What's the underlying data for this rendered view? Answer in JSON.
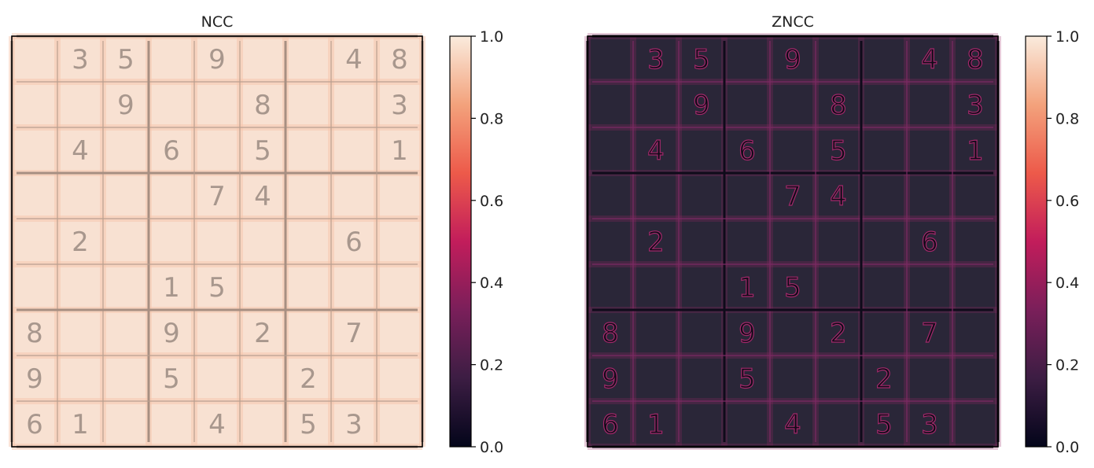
{
  "chart_data": [
    {
      "type": "heatmap",
      "title": "NCC",
      "colorbar": {
        "ticks": [
          "0.0",
          "0.2",
          "0.4",
          "0.6",
          "0.8",
          "1.0"
        ],
        "range": [
          0.0,
          1.0
        ]
      },
      "background": "#f8e1d2",
      "grid": [
        [
          null,
          "3",
          "5",
          null,
          "9",
          null,
          null,
          "4",
          "8"
        ],
        [
          null,
          null,
          "9",
          null,
          null,
          "8",
          null,
          null,
          "3"
        ],
        [
          null,
          "4",
          null,
          "6",
          null,
          "5",
          null,
          null,
          "1"
        ],
        [
          null,
          null,
          null,
          null,
          "7",
          "4",
          null,
          null,
          null
        ],
        [
          null,
          "2",
          null,
          null,
          null,
          null,
          null,
          "6",
          null
        ],
        [
          null,
          null,
          null,
          "1",
          "5",
          null,
          null,
          null,
          null
        ],
        [
          "8",
          null,
          null,
          "9",
          null,
          "2",
          null,
          "7",
          null
        ],
        [
          "9",
          null,
          null,
          "5",
          null,
          null,
          "2",
          null,
          null
        ],
        [
          "6",
          "1",
          null,
          null,
          "4",
          null,
          "5",
          "3",
          null
        ]
      ]
    },
    {
      "type": "heatmap",
      "title": "ZNCC",
      "colorbar": {
        "ticks": [
          "0.0",
          "0.2",
          "0.4",
          "0.6",
          "0.8",
          "1.0"
        ],
        "range": [
          0.0,
          1.0
        ]
      },
      "background": "#2a2638",
      "grid": [
        [
          null,
          "3",
          "5",
          null,
          "9",
          null,
          null,
          "4",
          "8"
        ],
        [
          null,
          null,
          "9",
          null,
          null,
          "8",
          null,
          null,
          "3"
        ],
        [
          null,
          "4",
          null,
          "6",
          null,
          "5",
          null,
          null,
          "1"
        ],
        [
          null,
          null,
          null,
          null,
          "7",
          "4",
          null,
          null,
          null
        ],
        [
          null,
          "2",
          null,
          null,
          null,
          null,
          null,
          "6",
          null
        ],
        [
          null,
          null,
          null,
          "1",
          "5",
          null,
          null,
          null,
          null
        ],
        [
          "8",
          null,
          null,
          "9",
          null,
          "2",
          null,
          "7",
          null
        ],
        [
          "9",
          null,
          null,
          "5",
          null,
          null,
          "2",
          null,
          null
        ],
        [
          "6",
          "1",
          null,
          null,
          "4",
          null,
          "5",
          "3",
          null
        ]
      ]
    }
  ],
  "colormap": {
    "name": "rocket",
    "stops": [
      "#03051a",
      "#3c1d43",
      "#7a1f5a",
      "#c21d5b",
      "#ed5a4a",
      "#f3a27c",
      "#faebdd"
    ]
  }
}
